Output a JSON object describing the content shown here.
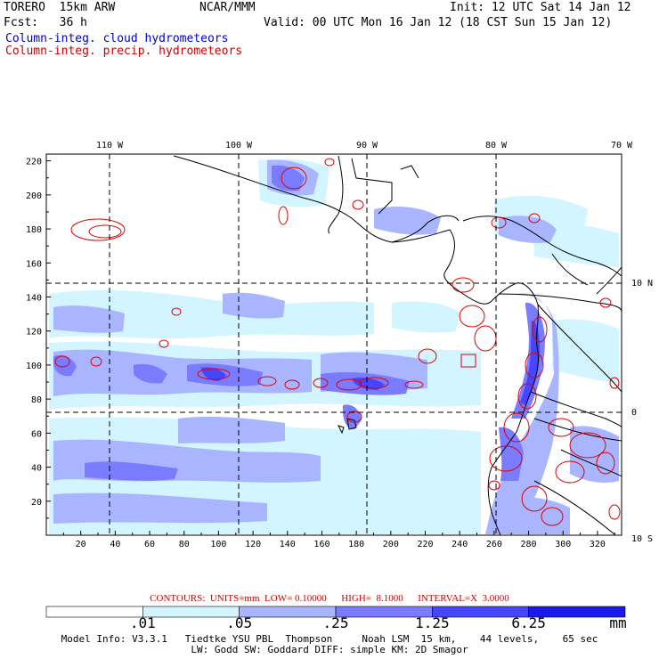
{
  "header": {
    "model": "TORERO  15km ARW",
    "org": "NCAR/MMM",
    "init": "Init: 12 UTC Sat 14 Jan 12",
    "fcst": "Fcst:   36 h",
    "valid": "Valid: 00 UTC Mon 16 Jan 12 (18 CST Sun 15 Jan 12)",
    "field1": "Column-integ. cloud hydrometeors",
    "field2": "Column-integ. precip. hydrometeors"
  },
  "axes": {
    "top_lon_labels": [
      "110 W",
      "100 W",
      "90 W",
      "80 W",
      "70 W"
    ],
    "right_lat_labels": [
      "10 N",
      "0",
      "10 S"
    ],
    "x_ticks": [
      "20",
      "40",
      "60",
      "80",
      "100",
      "120",
      "140",
      "160",
      "180",
      "200",
      "220",
      "240",
      "260",
      "280",
      "300",
      "320"
    ],
    "y_ticks": [
      "20",
      "40",
      "60",
      "80",
      "100",
      "120",
      "140",
      "160",
      "180",
      "200",
      "220"
    ]
  },
  "contours_info": "CONTOURS:  UNITS=mm  LOW= 0.10000      HIGH=  8.1000      INTERVAL=X  3.0000",
  "colorbar": {
    "labels": [
      ".01",
      ".05",
      ".25",
      "1.25",
      "6.25"
    ],
    "unit": "mm",
    "colors": [
      "#ffffff",
      "#d2f5ff",
      "#a9b6ff",
      "#7b7bff",
      "#4646ff",
      "#1a1aee"
    ]
  },
  "model_info": {
    "line1": "Model Info: V3.3.1   Tiedtke YSU PBL  Thompson     Noah LSM  15 km,    44 levels,    65 sec",
    "line2": "LW: Godd SW: Goddard DIFF: simple KM: 2D Smagor"
  }
}
